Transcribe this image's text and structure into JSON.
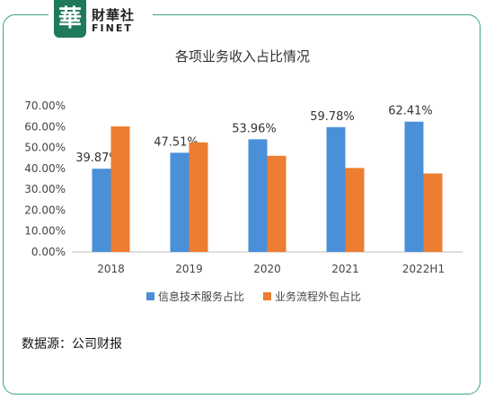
{
  "logo": {
    "badge": "華",
    "cn": "財華社",
    "en": "FINET"
  },
  "source": "数据源：公司财报",
  "colors": {
    "series1": "#4a90d9",
    "series2": "#ed7d31",
    "frame": "#3aa08c"
  },
  "chart_data": {
    "type": "bar",
    "title": "各项业务收入占比情况",
    "categories": [
      "2018",
      "2019",
      "2020",
      "2021",
      "2022H1"
    ],
    "series": [
      {
        "name": "信息技术服务占比",
        "values": [
          39.87,
          47.51,
          53.96,
          59.78,
          62.41
        ],
        "labels": [
          "39.87%",
          "47.51%",
          "53.96%",
          "59.78%",
          "62.41%"
        ]
      },
      {
        "name": "业务流程外包占比",
        "values": [
          60.13,
          52.49,
          46.04,
          40.22,
          37.59
        ]
      }
    ],
    "ylim": [
      0,
      70
    ],
    "yticks": [
      "0.00%",
      "10.00%",
      "20.00%",
      "30.00%",
      "40.00%",
      "50.00%",
      "60.00%",
      "70.00%"
    ],
    "grid": false,
    "legend": "bottom"
  }
}
